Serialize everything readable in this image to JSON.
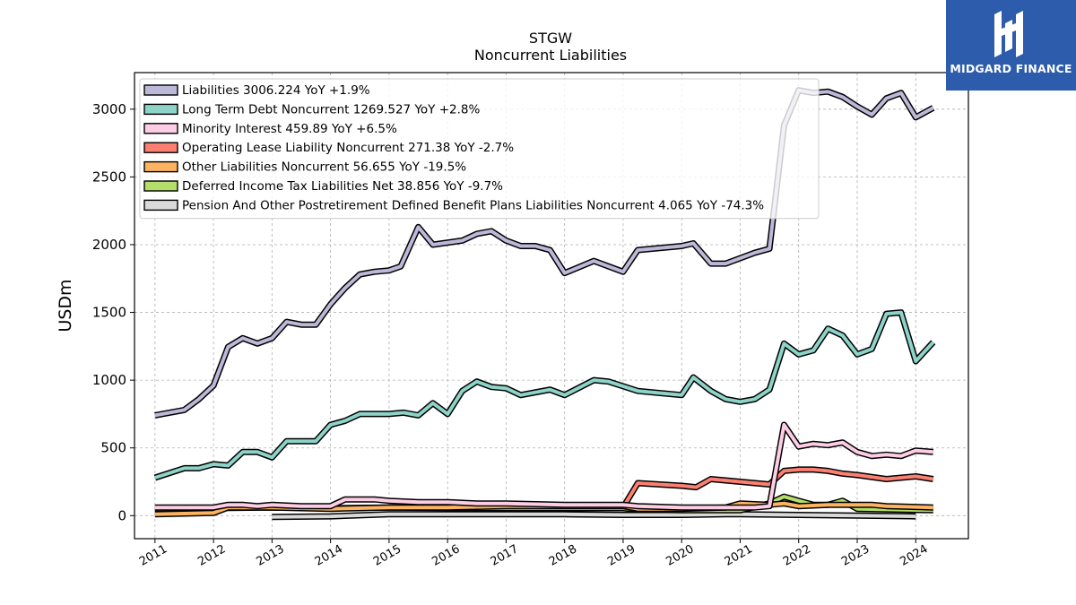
{
  "logo": {
    "text": "MIDGARD FINANCE",
    "icon": "midgard-logo-icon"
  },
  "chart_data": {
    "type": "line",
    "title": "STGW",
    "subtitle": "Noncurrent  Liabilities",
    "ylabel": "USDm",
    "xlabel": "",
    "ylim": [
      -170,
      3270
    ],
    "xlim": [
      2010.65,
      2024.9
    ],
    "yticks": [
      0,
      500,
      1000,
      1500,
      2000,
      2500,
      3000
    ],
    "xticks": [
      2011,
      2012,
      2013,
      2014,
      2015,
      2016,
      2017,
      2018,
      2019,
      2020,
      2021,
      2022,
      2023,
      2024
    ],
    "grid": true,
    "legend_position": "top-left",
    "series": [
      {
        "name": "Liabilities",
        "legend": "Liabilities  3006.224 YoY +1.9%",
        "color": "#bcb8d8",
        "points": [
          [
            2011.0,
            740
          ],
          [
            2011.5,
            780
          ],
          [
            2011.75,
            860
          ],
          [
            2012.0,
            960
          ],
          [
            2012.25,
            1245
          ],
          [
            2012.5,
            1310
          ],
          [
            2012.75,
            1270
          ],
          [
            2013.0,
            1310
          ],
          [
            2013.25,
            1430
          ],
          [
            2013.5,
            1410
          ],
          [
            2013.75,
            1410
          ],
          [
            2014.0,
            1560
          ],
          [
            2014.25,
            1680
          ],
          [
            2014.5,
            1780
          ],
          [
            2014.75,
            1800
          ],
          [
            2015.0,
            1810
          ],
          [
            2015.2,
            1840
          ],
          [
            2015.5,
            2130
          ],
          [
            2015.75,
            2000
          ],
          [
            2016.25,
            2030
          ],
          [
            2016.5,
            2080
          ],
          [
            2016.75,
            2100
          ],
          [
            2017.0,
            2030
          ],
          [
            2017.25,
            1990
          ],
          [
            2017.5,
            1990
          ],
          [
            2017.75,
            1960
          ],
          [
            2018.0,
            1790
          ],
          [
            2018.5,
            1880
          ],
          [
            2019.0,
            1800
          ],
          [
            2019.25,
            1960
          ],
          [
            2020.0,
            1990
          ],
          [
            2020.2,
            2010
          ],
          [
            2020.5,
            1860
          ],
          [
            2020.75,
            1860
          ],
          [
            2021.25,
            1940
          ],
          [
            2021.5,
            1970
          ],
          [
            2021.75,
            2880
          ],
          [
            2022.0,
            3140
          ],
          [
            2022.25,
            3120
          ],
          [
            2022.5,
            3130
          ],
          [
            2022.75,
            3090
          ],
          [
            2023.0,
            3020
          ],
          [
            2023.25,
            2960
          ],
          [
            2023.5,
            3080
          ],
          [
            2023.75,
            3120
          ],
          [
            2024.0,
            2940
          ],
          [
            2024.3,
            3010
          ]
        ]
      },
      {
        "name": "Long Term Debt Noncurrent",
        "legend": "Long Term Debt Noncurrent  1269.527 YoY +2.8%",
        "color": "#8dd3c7",
        "points": [
          [
            2011.0,
            280
          ],
          [
            2011.5,
            350
          ],
          [
            2011.75,
            350
          ],
          [
            2012.0,
            380
          ],
          [
            2012.25,
            370
          ],
          [
            2012.5,
            470
          ],
          [
            2012.75,
            470
          ],
          [
            2013.0,
            430
          ],
          [
            2013.25,
            550
          ],
          [
            2013.5,
            550
          ],
          [
            2013.75,
            550
          ],
          [
            2014.0,
            670
          ],
          [
            2014.25,
            700
          ],
          [
            2014.5,
            750
          ],
          [
            2014.75,
            750
          ],
          [
            2015.0,
            750
          ],
          [
            2015.25,
            760
          ],
          [
            2015.5,
            740
          ],
          [
            2015.75,
            830
          ],
          [
            2016.0,
            750
          ],
          [
            2016.25,
            920
          ],
          [
            2016.5,
            990
          ],
          [
            2016.75,
            950
          ],
          [
            2017.0,
            940
          ],
          [
            2017.25,
            890
          ],
          [
            2017.75,
            930
          ],
          [
            2018.0,
            890
          ],
          [
            2018.5,
            1000
          ],
          [
            2018.75,
            990
          ],
          [
            2019.25,
            920
          ],
          [
            2020.0,
            890
          ],
          [
            2020.2,
            1020
          ],
          [
            2020.5,
            920
          ],
          [
            2020.75,
            860
          ],
          [
            2021.0,
            840
          ],
          [
            2021.25,
            860
          ],
          [
            2021.5,
            930
          ],
          [
            2021.75,
            1270
          ],
          [
            2022.0,
            1190
          ],
          [
            2022.25,
            1220
          ],
          [
            2022.5,
            1380
          ],
          [
            2022.75,
            1330
          ],
          [
            2023.0,
            1190
          ],
          [
            2023.25,
            1230
          ],
          [
            2023.5,
            1490
          ],
          [
            2023.75,
            1500
          ],
          [
            2024.0,
            1140
          ],
          [
            2024.3,
            1280
          ]
        ]
      },
      {
        "name": "Minority Interest",
        "legend": "Minority Interest  459.89 YoY +6.5%",
        "color": "#fccde5",
        "points": [
          [
            2011.0,
            60
          ],
          [
            2011.5,
            60
          ],
          [
            2012.0,
            60
          ],
          [
            2012.25,
            80
          ],
          [
            2012.5,
            80
          ],
          [
            2012.75,
            70
          ],
          [
            2013.0,
            80
          ],
          [
            2013.5,
            70
          ],
          [
            2014.0,
            70
          ],
          [
            2014.25,
            120
          ],
          [
            2014.75,
            120
          ],
          [
            2015.0,
            110
          ],
          [
            2015.5,
            100
          ],
          [
            2016.0,
            100
          ],
          [
            2016.5,
            90
          ],
          [
            2017.0,
            90
          ],
          [
            2018.0,
            80
          ],
          [
            2019.0,
            80
          ],
          [
            2019.25,
            70
          ],
          [
            2020.0,
            60
          ],
          [
            2020.75,
            60
          ],
          [
            2021.25,
            60
          ],
          [
            2021.5,
            70
          ],
          [
            2021.75,
            670
          ],
          [
            2022.0,
            510
          ],
          [
            2022.25,
            530
          ],
          [
            2022.5,
            520
          ],
          [
            2022.75,
            540
          ],
          [
            2023.0,
            470
          ],
          [
            2023.25,
            440
          ],
          [
            2023.5,
            450
          ],
          [
            2023.75,
            440
          ],
          [
            2024.0,
            480
          ],
          [
            2024.3,
            470
          ]
        ]
      },
      {
        "name": "Operating Lease Liability Noncurrent",
        "legend": "Operating Lease Liability Noncurrent  271.38 YoY -2.7%",
        "color": "#fb8072",
        "points": [
          [
            2019.0,
            60
          ],
          [
            2019.25,
            240
          ],
          [
            2020.0,
            220
          ],
          [
            2020.25,
            210
          ],
          [
            2020.5,
            270
          ],
          [
            2021.0,
            250
          ],
          [
            2021.25,
            240
          ],
          [
            2021.5,
            230
          ],
          [
            2021.75,
            330
          ],
          [
            2022.0,
            340
          ],
          [
            2022.25,
            340
          ],
          [
            2022.5,
            330
          ],
          [
            2022.75,
            310
          ],
          [
            2023.0,
            300
          ],
          [
            2023.5,
            270
          ],
          [
            2024.0,
            290
          ],
          [
            2024.3,
            270
          ]
        ]
      },
      {
        "name": "Other Liabilities Noncurrent",
        "legend": "Other Liabilities Noncurrent  56.655 YoY -19.5%",
        "color": "#fdb462",
        "points": [
          [
            2011.0,
            10
          ],
          [
            2012.0,
            20
          ],
          [
            2012.25,
            60
          ],
          [
            2013.0,
            60
          ],
          [
            2014.0,
            50
          ],
          [
            2015.0,
            60
          ],
          [
            2016.0,
            60
          ],
          [
            2017.0,
            70
          ],
          [
            2018.0,
            70
          ],
          [
            2019.0,
            70
          ],
          [
            2019.25,
            50
          ],
          [
            2020.0,
            50
          ],
          [
            2020.75,
            60
          ],
          [
            2021.0,
            90
          ],
          [
            2021.5,
            80
          ],
          [
            2021.75,
            90
          ],
          [
            2022.0,
            70
          ],
          [
            2022.5,
            80
          ],
          [
            2023.0,
            80
          ],
          [
            2023.25,
            80
          ],
          [
            2023.5,
            70
          ],
          [
            2024.3,
            60
          ]
        ]
      },
      {
        "name": "Deferred Income Tax Liabilities Net",
        "legend": "Deferred Income Tax Liabilities Net  38.856 YoY -9.7%",
        "color": "#b3de69",
        "points": [
          [
            2011.0,
            50
          ],
          [
            2012.0,
            55
          ],
          [
            2013.0,
            60
          ],
          [
            2014.0,
            55
          ],
          [
            2015.0,
            60
          ],
          [
            2016.0,
            55
          ],
          [
            2017.0,
            55
          ],
          [
            2018.0,
            55
          ],
          [
            2019.0,
            55
          ],
          [
            2019.25,
            45
          ],
          [
            2020.0,
            40
          ],
          [
            2020.75,
            40
          ],
          [
            2021.0,
            40
          ],
          [
            2021.5,
            90
          ],
          [
            2021.75,
            140
          ],
          [
            2022.0,
            110
          ],
          [
            2022.25,
            80
          ],
          [
            2022.5,
            80
          ],
          [
            2022.75,
            110
          ],
          [
            2023.0,
            50
          ],
          [
            2024.3,
            40
          ]
        ]
      },
      {
        "name": "Pension And Other Postretirement Defined Benefit Plans Liabilities Noncurrent",
        "legend": "Pension And Other Postretirement Defined Benefit Plans Liabilities Noncurrent  4.065 YoY -74.3%",
        "color": "#d9d9d9",
        "points": [
          [
            2013.0,
            -10
          ],
          [
            2014.0,
            -5
          ],
          [
            2015.0,
            10
          ],
          [
            2016.0,
            10
          ],
          [
            2017.0,
            10
          ],
          [
            2018.0,
            10
          ],
          [
            2019.0,
            5
          ],
          [
            2020.0,
            5
          ],
          [
            2020.75,
            10
          ],
          [
            2021.0,
            10
          ],
          [
            2022.0,
            5
          ],
          [
            2023.0,
            0
          ],
          [
            2024.0,
            -5
          ]
        ]
      }
    ]
  }
}
